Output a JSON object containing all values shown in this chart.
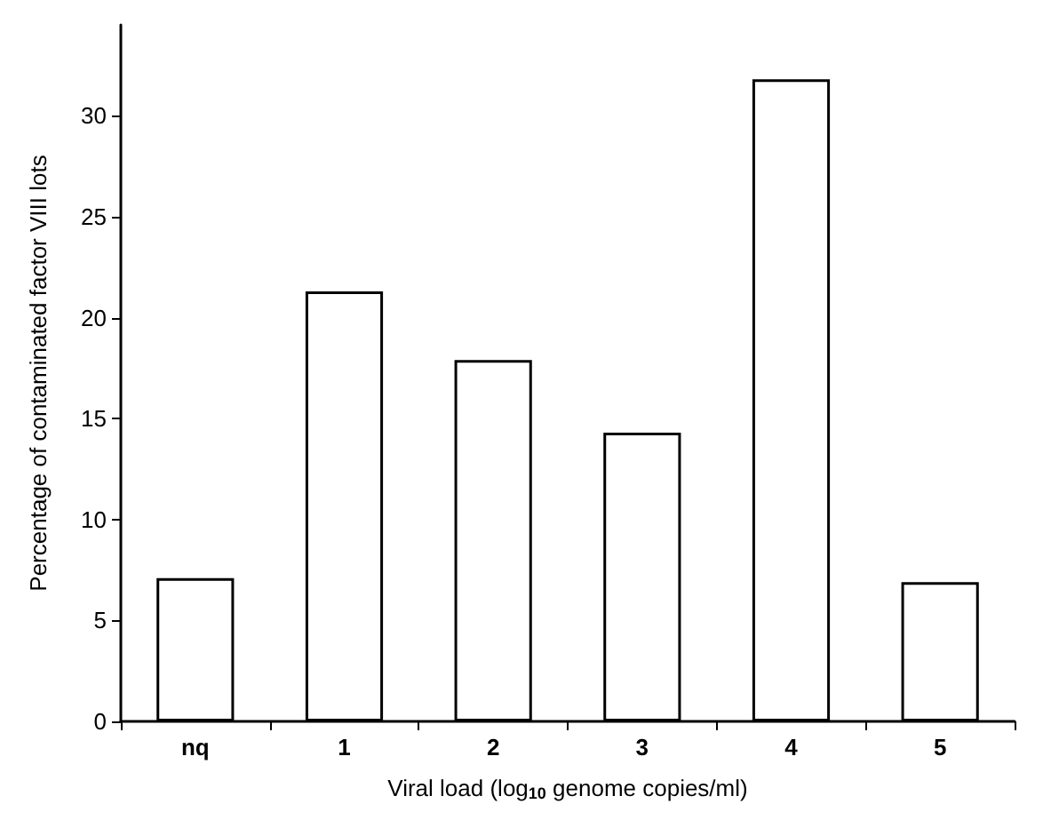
{
  "chart_data": {
    "type": "bar",
    "xlabel": "Viral load (log$_{10}$ genome copies/ml)",
    "ylabel": "Percentage of contaminated factor VIII lots",
    "categories": [
      "nq",
      "1",
      "2",
      "3",
      "4",
      "5"
    ],
    "values": [
      7.1,
      21.3,
      17.9,
      14.3,
      31.8,
      6.9
    ],
    "color": "#ffffff",
    "ylim": [
      0,
      34.5
    ],
    "yticks": [
      0,
      5,
      10,
      15,
      20,
      25,
      30
    ]
  }
}
